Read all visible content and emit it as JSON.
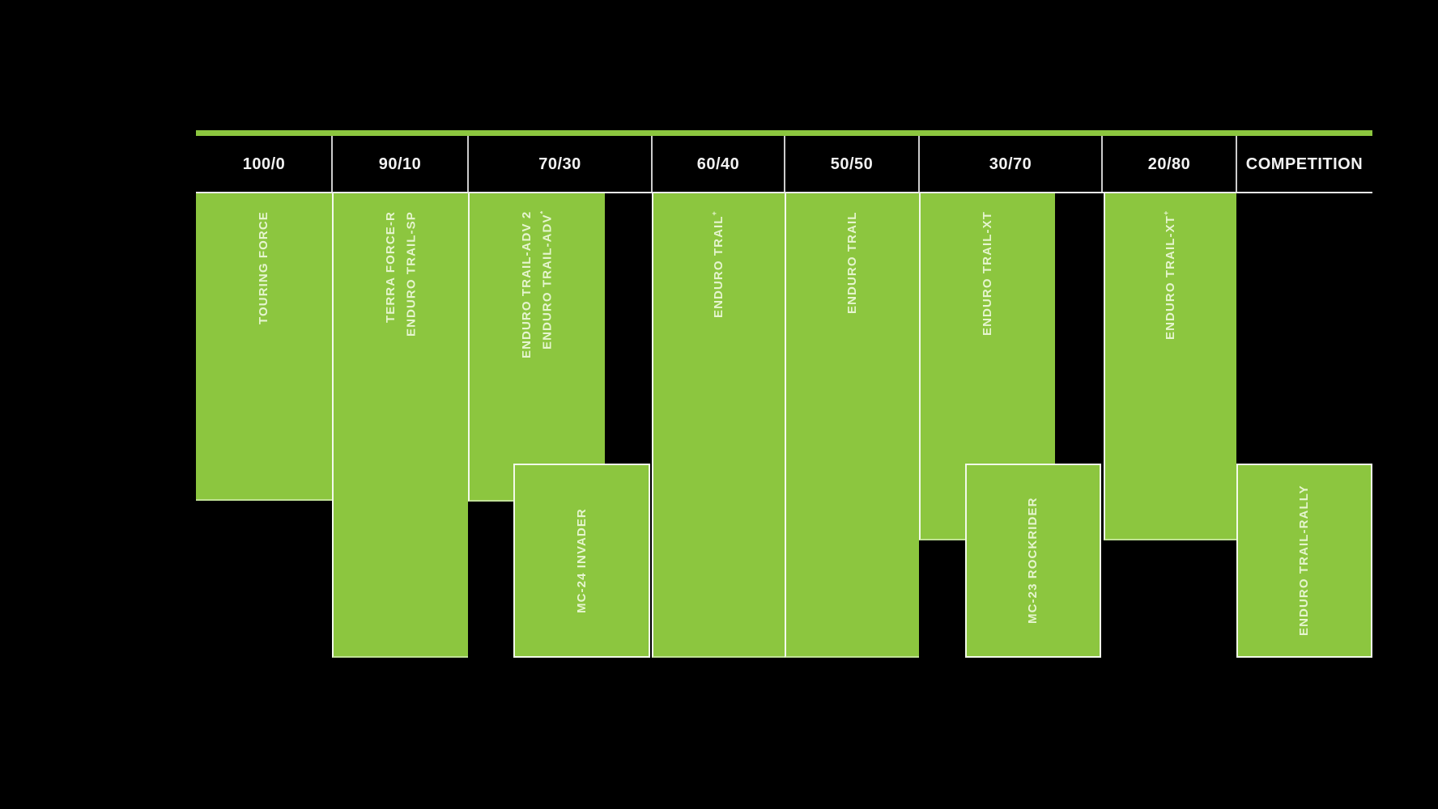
{
  "header": {
    "columns": [
      "100/0",
      "90/10",
      "70/30",
      "60/40",
      "50/50",
      "30/70",
      "20/80",
      "COMPETITION"
    ]
  },
  "bars": {
    "touring": {
      "line1": "TOURING FORCE"
    },
    "terra": {
      "line1": "TERRA FORCE-R",
      "line2": "ENDURO TRAIL-SP"
    },
    "adv": {
      "line1": "ENDURO TRAIL-ADV 2",
      "line2": "ENDURO TRAIL-ADV",
      "line2_sup": "*"
    },
    "mc24": {
      "line1": "MC-24 INVADER"
    },
    "trailplus": {
      "line1": "ENDURO TRAIL",
      "sup": "+"
    },
    "trail": {
      "line1": "ENDURO TRAIL"
    },
    "xt": {
      "line1": "ENDURO TRAIL-XT"
    },
    "mc23": {
      "line1": "MC-23 ROCKRIDER"
    },
    "xtplus": {
      "line1": "ENDURO TRAIL-XT",
      "sup": "+"
    },
    "rally": {
      "line1": "ENDURO TRAIL-RALLY"
    }
  },
  "colors": {
    "background": "#000000",
    "bar_green": "#8CC63F",
    "accent_line_green": "#8CC63F",
    "bar_label_text": "#F3FCE4",
    "header_text": "#F2F2F2",
    "separator_white": "#FFFFFF"
  },
  "chart_data": {
    "type": "table",
    "title": "",
    "columns": [
      "100/0",
      "90/10",
      "70/30",
      "60/40",
      "50/50",
      "30/70",
      "20/80",
      "COMPETITION"
    ],
    "columns_meaning": "street/off-road usage ratio categories",
    "legend_position": "none",
    "grid": "column separators only",
    "items": [
      {
        "name": "TOURING FORCE",
        "columns": [
          "100/0"
        ],
        "row": "upper",
        "height": "short"
      },
      {
        "name": "TERRA FORCE-R / ENDURO TRAIL-SP",
        "columns": [
          "90/10"
        ],
        "row": "upper",
        "height": "full"
      },
      {
        "name": "ENDURO TRAIL-ADV 2 / ENDURO TRAIL-ADV*",
        "columns": [
          "70/30"
        ],
        "row": "upper",
        "height": "short"
      },
      {
        "name": "MC-24 INVADER",
        "columns": [
          "70/30"
        ],
        "row": "lower",
        "height": "box"
      },
      {
        "name": "ENDURO TRAIL+",
        "columns": [
          "60/40"
        ],
        "row": "upper",
        "height": "full"
      },
      {
        "name": "ENDURO TRAIL",
        "columns": [
          "50/50"
        ],
        "row": "upper",
        "height": "full"
      },
      {
        "name": "ENDURO TRAIL-XT",
        "columns": [
          "30/70"
        ],
        "row": "upper",
        "height": "medium"
      },
      {
        "name": "MC-23 ROCKRIDER",
        "columns": [
          "30/70"
        ],
        "row": "lower",
        "height": "box"
      },
      {
        "name": "ENDURO TRAIL-XT+",
        "columns": [
          "20/80"
        ],
        "row": "upper",
        "height": "medium"
      },
      {
        "name": "ENDURO TRAIL-RALLY",
        "columns": [
          "COMPETITION"
        ],
        "row": "lower",
        "height": "box"
      }
    ]
  }
}
